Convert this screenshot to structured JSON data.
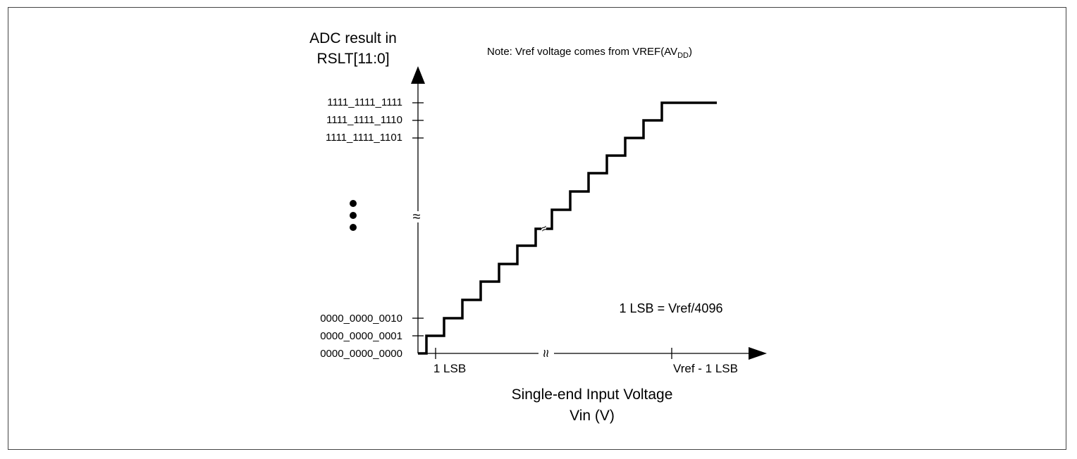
{
  "y_axis": {
    "title_line1": "ADC result in",
    "title_line2": "RSLT[11:0]",
    "ticks": [
      "1111_1111_1111",
      "1111_1111_1110",
      "1111_1111_1101",
      "0000_0000_0010",
      "0000_0000_0001",
      "0000_0000_0000"
    ]
  },
  "x_axis": {
    "title_line1": "Single-end Input Voltage",
    "title_line2": "Vin (V)",
    "tick_left": "1 LSB",
    "tick_right": "Vref - 1 LSB"
  },
  "note": {
    "prefix": "Note: Vref voltage comes from VREF(AV",
    "subscript": "DD",
    "suffix": ")"
  },
  "lsb_formula": "1 LSB = Vref/4096",
  "break_symbol": "≈"
}
